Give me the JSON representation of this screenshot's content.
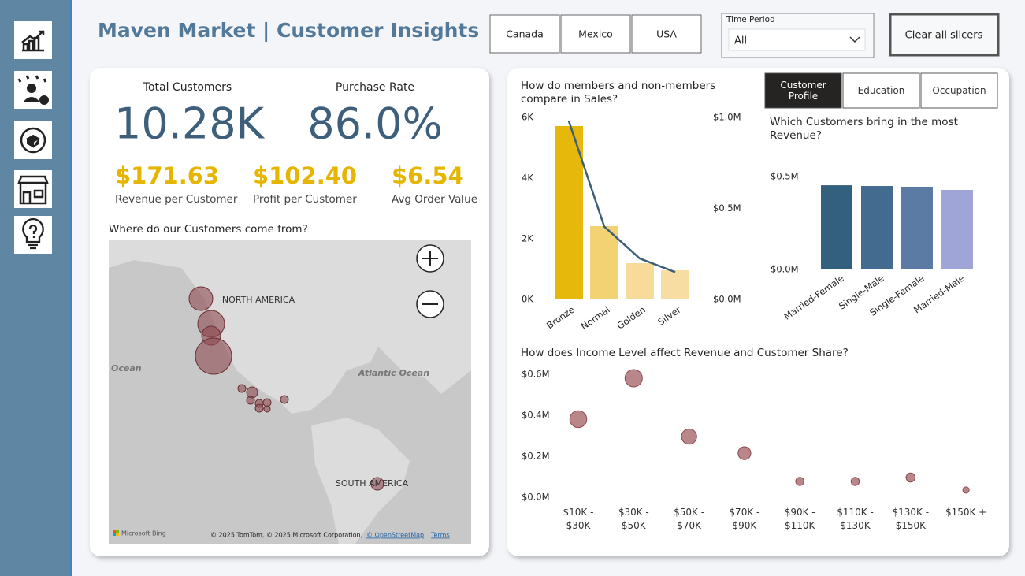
{
  "header": {
    "title": "Maven Market | Customer Insights",
    "countries": [
      "Canada",
      "Mexico",
      "USA"
    ],
    "time_period_label": "Time Period",
    "time_period_value": "All",
    "clear_button": "Clear all slicers"
  },
  "kpis": [
    {
      "label": "Total Customers",
      "value": "10.28K"
    },
    {
      "label": "Purchase Rate",
      "value": "86.0%"
    }
  ],
  "sub_kpis": [
    {
      "value": "$171.63",
      "label": "Revenue per Customer"
    },
    {
      "value": "$102.40",
      "label": "Profit per Customer"
    },
    {
      "value": "$6.54",
      "label": "Avg Order Value"
    }
  ],
  "map": {
    "title": "Where do our Customers come from?",
    "labels": [
      "NORTH AMERICA",
      "Ocean",
      "Atlantic Ocean",
      "SOUTH AMERICA"
    ],
    "brand": "Microsoft Bing",
    "attribution": "© 2025 TomTom, © 2025 Microsoft Corporation,",
    "osm": "© OpenStreetMap",
    "terms": "Terms"
  },
  "tabs": {
    "items": [
      "Customer Profile",
      "Education",
      "Occupation"
    ],
    "active": 0
  },
  "chart_data": [
    {
      "type": "bar",
      "title": "How do members and non-members compare in Sales?",
      "categories": [
        "Bronze",
        "Normal",
        "Golden",
        "Silver"
      ],
      "series": [
        {
          "values": [
            5714,
            2416,
            1195,
            961
          ],
          "colors": [
            "#e6b80b",
            "#f2d272",
            "#f7dc99",
            "#f8dda2"
          ]
        },
        {
          "values": [
            980000,
            400000,
            225000,
            150000
          ],
          "axis": "y2",
          "kind": "line",
          "color": "#3b5f78"
        }
      ],
      "ylim": [
        0,
        6000
      ],
      "yticks": [
        {
          "value": 0,
          "label": "0K"
        },
        {
          "value": 2000,
          "label": "2K"
        },
        {
          "value": 4000,
          "label": "4K"
        },
        {
          "value": 6000,
          "label": "6K"
        }
      ],
      "y2lim": [
        0,
        1000000
      ],
      "y2ticks": [
        {
          "value": 0,
          "label": "$0.0M"
        },
        {
          "value": 500000,
          "label": "$0.5M"
        },
        {
          "value": 1000000,
          "label": "$1.0M"
        }
      ]
    },
    {
      "type": "bar",
      "title": "Which Customers bring in the most Revenue?",
      "categories": [
        "Married-Female",
        "Single-Male",
        "Single-Female",
        "Married-Male"
      ],
      "values": [
        453000,
        449000,
        445000,
        428000
      ],
      "colors": [
        "#34607f",
        "#436a8f",
        "#5b7ba5",
        "#9fa5d7"
      ],
      "ylim": [
        0,
        550000
      ],
      "yticks": [
        {
          "value": 0,
          "label": "$0.0M"
        },
        {
          "value": 500000,
          "label": "$0.5M"
        }
      ]
    },
    {
      "type": "scatter",
      "title": "How does Income Level affect Revenue and Customer Share?",
      "categories": [
        "$10K - $30K",
        "$30K - $50K",
        "$50K - $70K",
        "$70K - $90K",
        "$90K - $110K",
        "$110K - $130K",
        "$130K - $150K",
        "$150K +"
      ],
      "values": [
        381000,
        581000,
        296000,
        215000,
        77000,
        77000,
        96000,
        35000
      ],
      "sizes": [
        21,
        22,
        17,
        12,
        5,
        5,
        6,
        3
      ],
      "color": "#a8686b",
      "ylim": [
        0,
        620000
      ],
      "yticks": [
        {
          "value": 0,
          "label": "$0.0M"
        },
        {
          "value": 200000,
          "label": "$0.2M"
        },
        {
          "value": 400000,
          "label": "$0.4M"
        },
        {
          "value": 600000,
          "label": "$0.6M"
        }
      ]
    }
  ]
}
